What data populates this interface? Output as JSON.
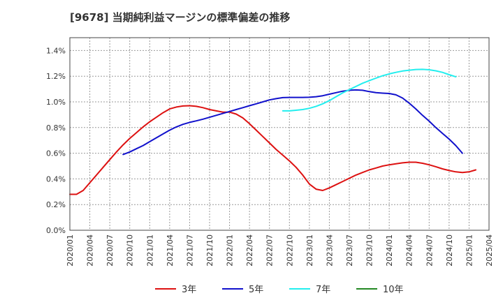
{
  "chart_data": {
    "type": "line",
    "title": "[9678]  当期純利益マージンの標準偏差の推移",
    "xlabel": "",
    "ylabel": "",
    "ylim": [
      0,
      0.015
    ],
    "y_ticks": [
      "0.0%",
      "0.2%",
      "0.4%",
      "0.6%",
      "0.8%",
      "1.0%",
      "1.2%",
      "1.4%"
    ],
    "y_tick_values": [
      0,
      0.002,
      0.004,
      0.006,
      0.008,
      0.01,
      0.012,
      0.014
    ],
    "x_ticks": [
      "2020/01",
      "2020/04",
      "2020/07",
      "2020/10",
      "2021/01",
      "2021/04",
      "2021/07",
      "2021/10",
      "2022/01",
      "2022/04",
      "2022/07",
      "2022/10",
      "2023/01",
      "2023/04",
      "2023/07",
      "2023/10",
      "2024/01",
      "2024/04",
      "2024/07",
      "2024/10",
      "2025/01",
      "2025/04"
    ],
    "grid": true,
    "legend_position": "bottom",
    "series": [
      {
        "name": "3年",
        "color": "#dd1111",
        "start": "2020/01",
        "values": [
          0.0028,
          0.0028,
          0.0031,
          0.0037,
          0.0043,
          0.0049,
          0.0055,
          0.0061,
          0.00665,
          0.00715,
          0.0076,
          0.00805,
          0.00845,
          0.0088,
          0.00915,
          0.00945,
          0.0096,
          0.00968,
          0.0097,
          0.00965,
          0.00955,
          0.0094,
          0.0093,
          0.0092,
          0.0092,
          0.00905,
          0.00875,
          0.0083,
          0.0078,
          0.0073,
          0.0068,
          0.0063,
          0.00585,
          0.0054,
          0.0049,
          0.0043,
          0.0036,
          0.0032,
          0.0031,
          0.0033,
          0.00355,
          0.0038,
          0.00405,
          0.0043,
          0.0045,
          0.0047,
          0.00485,
          0.005,
          0.0051,
          0.00518,
          0.00525,
          0.0053,
          0.0053,
          0.00522,
          0.0051,
          0.00495,
          0.00478,
          0.00465,
          0.00455,
          0.0045,
          0.00455,
          0.0047
        ]
      },
      {
        "name": "5年",
        "color": "#1111cc",
        "start": "2020/09",
        "values": [
          0.0059,
          0.0061,
          0.00635,
          0.0066,
          0.0069,
          0.0072,
          0.0075,
          0.0078,
          0.00805,
          0.00825,
          0.0084,
          0.00852,
          0.00865,
          0.0088,
          0.00895,
          0.0091,
          0.00925,
          0.0094,
          0.00955,
          0.0097,
          0.00985,
          0.01,
          0.01015,
          0.01025,
          0.01033,
          0.01035,
          0.01035,
          0.01035,
          0.01036,
          0.0104,
          0.01048,
          0.0106,
          0.01072,
          0.01083,
          0.0109,
          0.01093,
          0.0109,
          0.0108,
          0.01072,
          0.01068,
          0.01065,
          0.01055,
          0.0103,
          0.0099,
          0.00945,
          0.00895,
          0.0085,
          0.008,
          0.00755,
          0.0071,
          0.0066,
          0.006
        ]
      },
      {
        "name": "7年",
        "color": "#22eeee",
        "start": "2022/09",
        "values": [
          0.0093,
          0.0093,
          0.00935,
          0.0094,
          0.0095,
          0.00965,
          0.00985,
          0.0101,
          0.0104,
          0.0107,
          0.01095,
          0.0112,
          0.01145,
          0.01165,
          0.01185,
          0.01203,
          0.01218,
          0.0123,
          0.0124,
          0.01247,
          0.01252,
          0.01253,
          0.0125,
          0.01242,
          0.0123,
          0.01212,
          0.01195
        ]
      },
      {
        "name": "10年",
        "color": "#228822",
        "start": "2020/01",
        "values": []
      }
    ]
  }
}
